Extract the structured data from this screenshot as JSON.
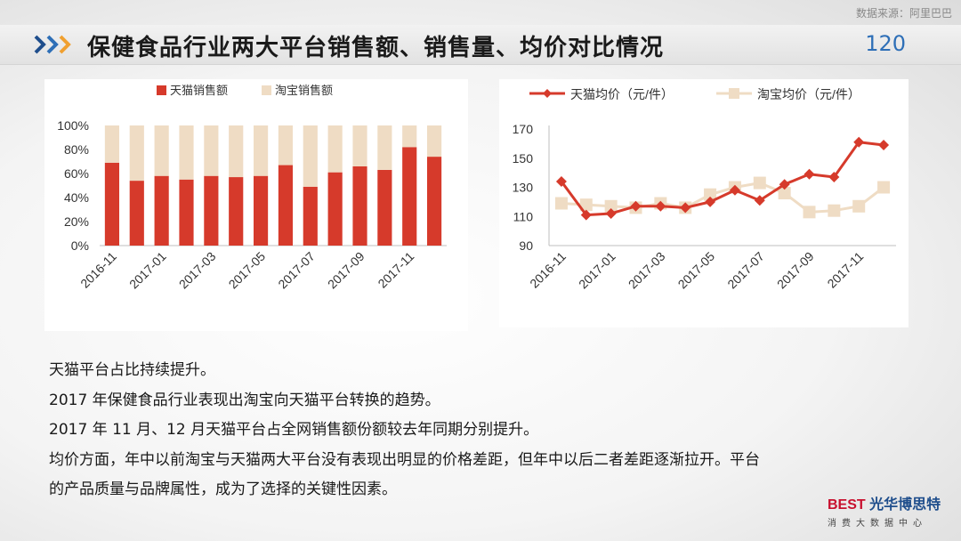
{
  "source_note": "数据来源：阿里巴巴",
  "title": "保健食品行业两大平台销售额、销售量、均价对比情况",
  "page_number": "120",
  "colors": {
    "tmall": "#d63a2b",
    "taobao": "#efdcc4",
    "accent_blue": "#2e6fb7",
    "chevron_orange": "#f0a030"
  },
  "icons": {
    "title_marker": "triple-chevron-icon"
  },
  "chart_data": [
    {
      "type": "bar",
      "stacked": true,
      "legend_position": "top",
      "categories": [
        "2016-11",
        "2016-12",
        "2017-01",
        "2017-02",
        "2017-03",
        "2017-04",
        "2017-05",
        "2017-06",
        "2017-07",
        "2017-08",
        "2017-09",
        "2017-10",
        "2017-11",
        "2017-12"
      ],
      "tick_labels": [
        "2016-11",
        "2017-01",
        "2017-03",
        "2017-05",
        "2017-07",
        "2017-09",
        "2017-11"
      ],
      "series": [
        {
          "name": "天猫销售额",
          "values": [
            69,
            54,
            58,
            55,
            58,
            57,
            58,
            67,
            49,
            61,
            66,
            63,
            82,
            74
          ]
        },
        {
          "name": "淘宝销售额",
          "values": [
            31,
            46,
            42,
            45,
            42,
            43,
            42,
            33,
            51,
            39,
            34,
            37,
            18,
            26
          ]
        }
      ],
      "ylim": [
        0,
        100
      ],
      "y_ticks": [
        "0%",
        "20%",
        "40%",
        "60%",
        "80%",
        "100%"
      ],
      "grid": false
    },
    {
      "type": "line",
      "legend_position": "top",
      "categories": [
        "2016-11",
        "2016-12",
        "2017-01",
        "2017-02",
        "2017-03",
        "2017-04",
        "2017-05",
        "2017-06",
        "2017-07",
        "2017-08",
        "2017-09",
        "2017-10",
        "2017-11",
        "2017-12"
      ],
      "tick_labels": [
        "2016-11",
        "2017-01",
        "2017-03",
        "2017-05",
        "2017-07",
        "2017-09",
        "2017-11"
      ],
      "series": [
        {
          "name": "天猫均价（元/件）",
          "values": [
            134,
            111,
            112,
            117,
            117,
            116,
            120,
            128,
            121,
            132,
            139,
            137,
            161,
            159
          ]
        },
        {
          "name": "淘宝均价（元/件）",
          "values": [
            119,
            118,
            117,
            116,
            119,
            116,
            125,
            130,
            133,
            126,
            113,
            114,
            117,
            130
          ]
        }
      ],
      "ylim": [
        90,
        170
      ],
      "y_ticks": [
        "90",
        "110",
        "130",
        "150",
        "170"
      ],
      "grid": false
    }
  ],
  "body_text": [
    "天猫平台占比持续提升。",
    "2017 年保健食品行业表现出淘宝向天猫平台转换的趋势。",
    "2017 年 11 月、12 月天猫平台占全网销售额份额较去年同期分别提升。",
    "均价方面，年中以前淘宝与天猫两大平台没有表现出明显的价格差距，但年中以后二者差距逐渐拉开。平台",
    "的产品质量与品牌属性，成为了选择的关键性因素。"
  ],
  "logo": {
    "mark": "BEST",
    "name": "光华博思特",
    "subtitle": "消费大数据中心"
  }
}
